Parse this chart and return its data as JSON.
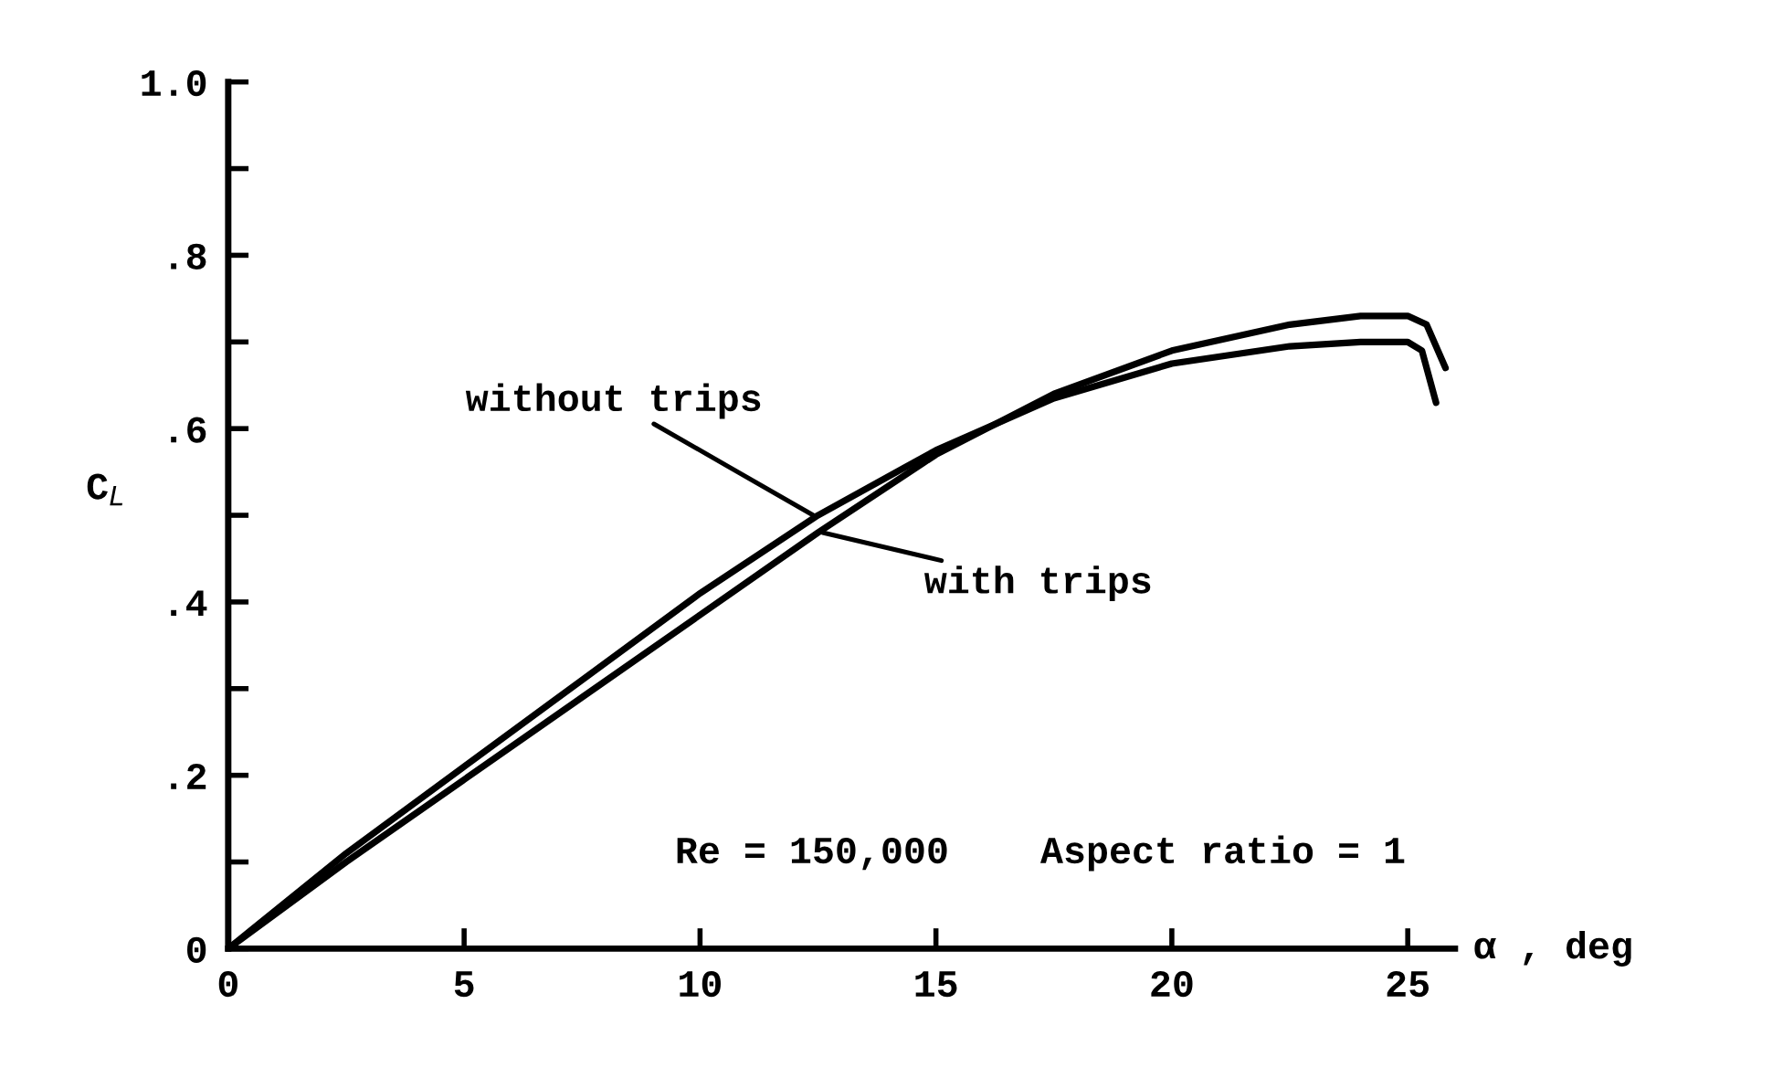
{
  "chart_data": {
    "type": "line",
    "xlabel": "α , deg",
    "ylabel": "C$_{L}$",
    "xlim": [
      0,
      26
    ],
    "xticks": [
      0,
      5,
      10,
      15,
      20,
      25
    ],
    "ylim": [
      0,
      1.0
    ],
    "yticks": [
      {
        "value": 0,
        "label": "0"
      },
      {
        "value": 0.1,
        "label": null
      },
      {
        "value": 0.2,
        "label": ".2"
      },
      {
        "value": 0.3,
        "label": null
      },
      {
        "value": 0.4,
        "label": ".4"
      },
      {
        "value": 0.5,
        "label": null
      },
      {
        "value": 0.6,
        "label": ".6"
      },
      {
        "value": 0.7,
        "label": null
      },
      {
        "value": 0.8,
        "label": ".8"
      },
      {
        "value": 0.9,
        "label": null
      },
      {
        "value": 1.0,
        "label": "1.0"
      }
    ],
    "grid": false,
    "legend": false,
    "marker": "none",
    "line_style": "solid",
    "series": [
      {
        "color": "#000000",
        "x": [
          0,
          2.5,
          5,
          7.5,
          10,
          12.5,
          15,
          17.5,
          20,
          22.5,
          24,
          25,
          25.3,
          25.6
        ],
        "values": [
          0,
          0.11,
          0.21,
          0.31,
          0.41,
          0.5,
          0.575,
          0.635,
          0.675,
          0.695,
          0.7,
          0.7,
          0.69,
          0.63
        ]
      },
      {
        "color": "#000000",
        "x": [
          0,
          2.5,
          5,
          7.5,
          10,
          12.5,
          15,
          17.5,
          20,
          22.5,
          24,
          25,
          25.4,
          25.8
        ],
        "values": [
          0,
          0.1,
          0.195,
          0.29,
          0.385,
          0.48,
          0.57,
          0.64,
          0.69,
          0.72,
          0.73,
          0.73,
          0.72,
          0.67
        ]
      }
    ],
    "annotations": [
      {
        "text": "without trips",
        "x": 12.4,
        "y": 0.5
      },
      {
        "text": "with trips",
        "x": 12.6,
        "y": 0.48
      },
      "Re = 150,000    Aspect ratio = 1"
    ]
  }
}
